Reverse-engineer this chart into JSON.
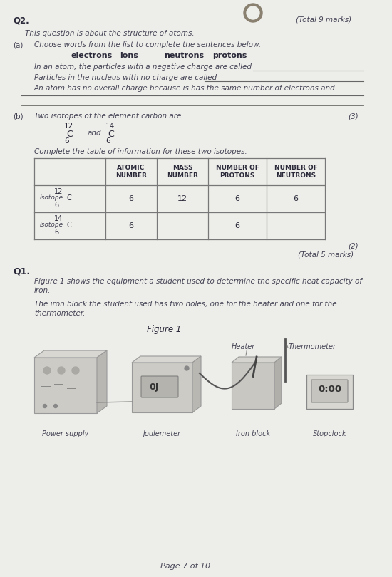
{
  "page_bg": "#ededea",
  "text_dark": "#2a2a3a",
  "text_mid": "#444455",
  "text_light": "#555566",
  "q2_label": "Q2.",
  "total_marks_q2": "(Total 9 marks)",
  "intro": "This question is about the structure of atoms.",
  "part_a_label": "(a)",
  "part_a_text": "Choose words from the list to complete the sentences below.",
  "word_list": [
    "electrons",
    "ions",
    "neutrons",
    "protons"
  ],
  "sentence1": "In an atom, the particles with a negative charge are called",
  "sentence2": "Particles in the nucleus with no charge are called",
  "sentence3": "An atom has no overall charge because is has the same number of electrons and",
  "part_b_label": "(b)",
  "part_b_text": "Two isotopes of the element carbon are:",
  "marks_3": "(3)",
  "isotope1_mass": "12",
  "isotope1_symbol": "C",
  "isotope1_atomic": "6",
  "and_text": "and",
  "isotope2_mass": "14",
  "isotope2_symbol": "C",
  "isotope2_atomic": "6",
  "table_intro": "Complete the table of information for these two isotopes.",
  "table_headers": [
    "ATOMIC\nNUMBER",
    "MASS\nNUMBER",
    "NUMBER OF\nPROTONS",
    "NUMBER OF\nNEUTRONS"
  ],
  "row1_isotope": "12",
  "row1_letter": "C",
  "row1_num": "6",
  "row1_data": [
    "6",
    "12",
    "6",
    "6"
  ],
  "row2_isotope": "14",
  "row2_letter": "C",
  "row2_num": "6",
  "row2_data": [
    "6",
    "",
    "6",
    ""
  ],
  "marks_2": "(2)",
  "total_marks_q2b": "(Total 5 marks)",
  "q1_label": "Q1.",
  "q1_text1": "Figure 1 shows the equipment a student used to determine the specific heat capacity of",
  "q1_text1b": "iron.",
  "q1_text2": "The iron block the student used has two holes, one for the heater and one for the",
  "q1_text2b": "thermometer.",
  "figure_title": "Figure 1",
  "label_heater": "Heater",
  "label_thermo": "Thermometer",
  "label_power": "Power supply",
  "label_joule": "Joulemeter",
  "label_iron": "Iron block",
  "label_stop": "Stopclock",
  "page_footer": "Page 7 of 10"
}
